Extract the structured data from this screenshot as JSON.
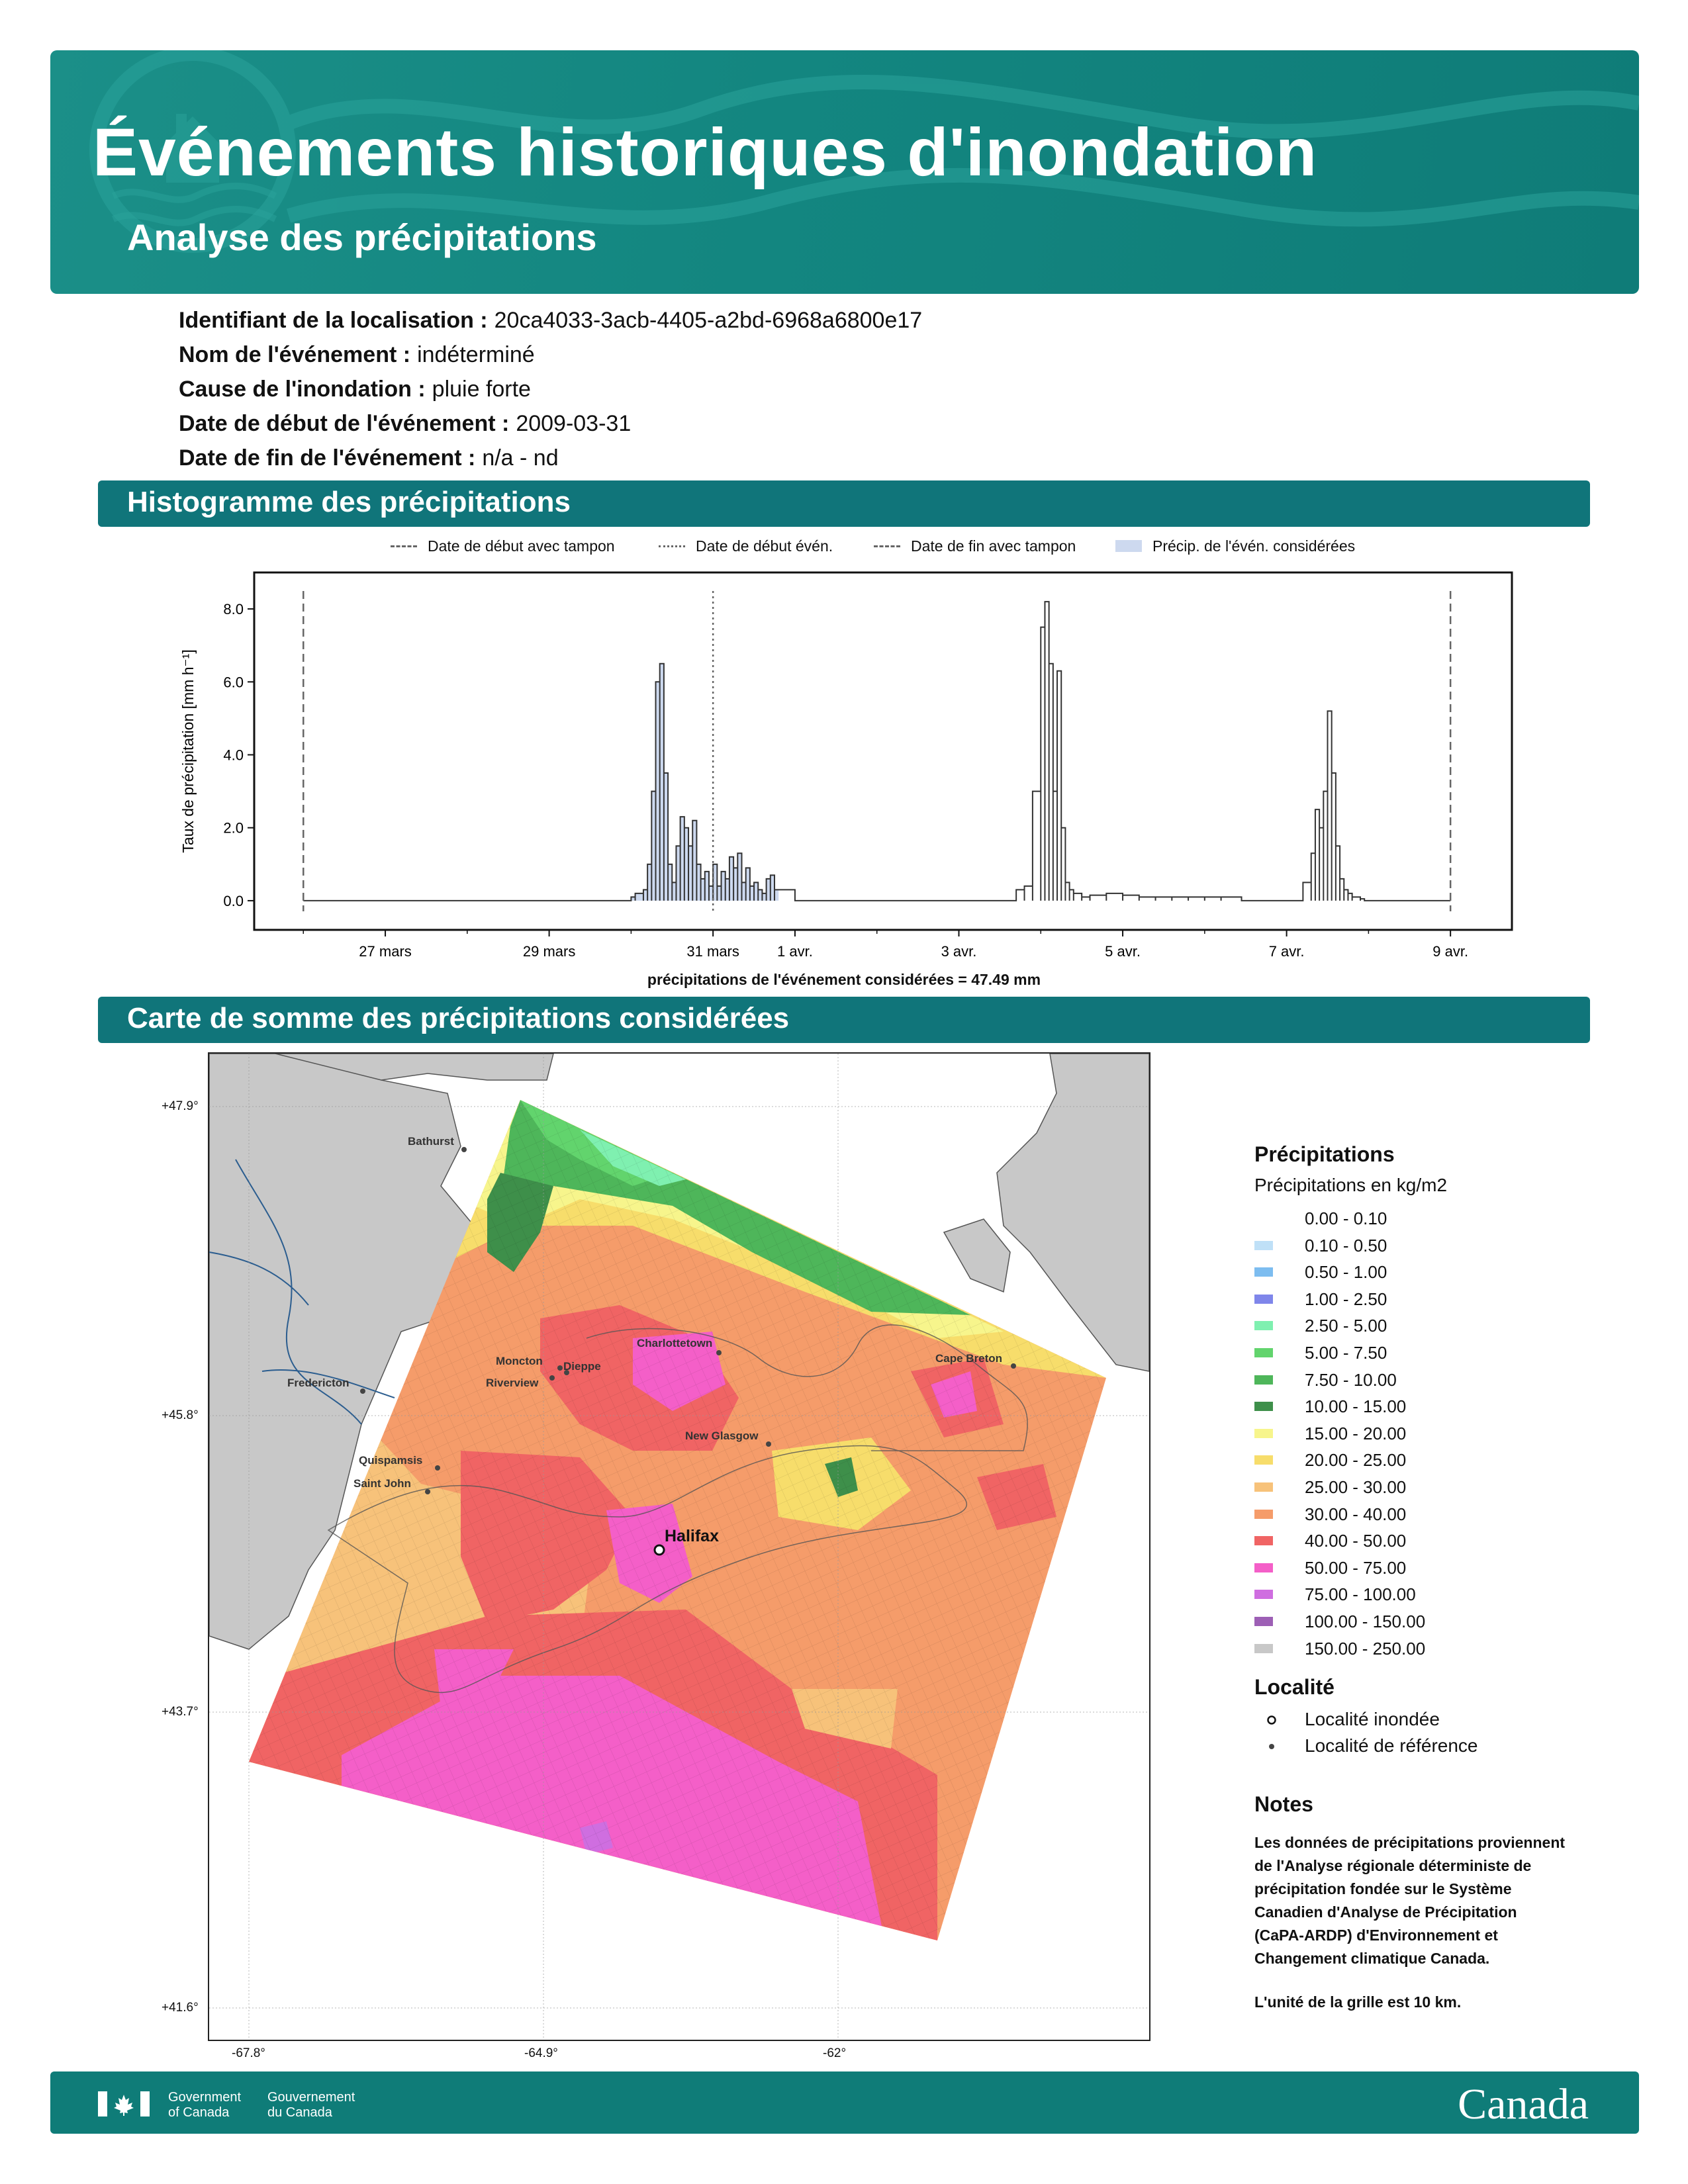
{
  "header": {
    "title": "Événements historiques d'inondation",
    "subtitle": "Analyse des précipitations"
  },
  "info": [
    {
      "label": "Identifiant de la localisation :",
      "value": "20ca4033-3acb-4405-a2bd-6968a6800e17"
    },
    {
      "label": "Nom de l'événement :",
      "value": "indéterminé"
    },
    {
      "label": "Cause de l'inondation :",
      "value": "pluie forte"
    },
    {
      "label": "Date de début de l'événement :",
      "value": "2009-03-31"
    },
    {
      "label": "Date de fin de l'événement :",
      "value": "n/a - nd"
    }
  ],
  "sections": {
    "histogram": "Histogramme des précipitations",
    "map": "Carte de somme des précipitations considérées"
  },
  "chart_legend": [
    {
      "label": "Date de début avec tampon",
      "style": "dashed"
    },
    {
      "label": "Date de début évén.",
      "style": "dotted"
    },
    {
      "label": "Date de fin avec tampon",
      "style": "dashed"
    },
    {
      "label": "Précip. de l'évén. considérées",
      "style": "fill",
      "color": "#cdd9ef"
    }
  ],
  "chart_data": {
    "type": "line",
    "ylabel": "Taux de précipitation [mm h⁻¹]",
    "yticks": [
      "0.0",
      "2.0",
      "4.0",
      "6.0",
      "8.0"
    ],
    "ylim": [
      -0.8,
      9.0
    ],
    "xlim_days": [
      -5.6,
      9.75
    ],
    "xticks": [
      {
        "label": "27 mars",
        "day": -4
      },
      {
        "label": "29 mars",
        "day": -2
      },
      {
        "label": "31 mars",
        "day": 0
      },
      {
        "label": "1 avr.",
        "day": 1
      },
      {
        "label": "3 avr.",
        "day": 3
      },
      {
        "label": "5 avr.",
        "day": 5
      },
      {
        "label": "7 avr.",
        "day": 7
      },
      {
        "label": "9 avr.",
        "day": 9
      }
    ],
    "buffer_start_day": -5,
    "event_start_day": 0,
    "buffer_end_day": 9,
    "considered_end_day": 0.75,
    "x_day": [
      -1.0,
      -0.95,
      -0.85,
      -0.8,
      -0.75,
      -0.7,
      -0.65,
      -0.6,
      -0.55,
      -0.5,
      -0.45,
      -0.4,
      -0.35,
      -0.3,
      -0.25,
      -0.2,
      -0.15,
      -0.1,
      -0.05,
      0.0,
      0.05,
      0.1,
      0.15,
      0.2,
      0.25,
      0.3,
      0.35,
      0.4,
      0.45,
      0.5,
      0.55,
      0.6,
      0.65,
      0.7,
      0.75,
      3.7,
      3.8,
      3.9,
      4.0,
      4.05,
      4.1,
      4.15,
      4.2,
      4.25,
      4.3,
      4.35,
      4.4,
      4.5,
      4.6,
      4.8,
      5.0,
      5.2,
      5.4,
      5.6,
      5.8,
      6.0,
      6.2,
      7.2,
      7.3,
      7.35,
      7.4,
      7.45,
      7.5,
      7.55,
      7.6,
      7.65,
      7.7,
      7.75,
      7.8,
      7.9
    ],
    "y": [
      0.1,
      0.2,
      0.3,
      1.0,
      3.0,
      6.0,
      6.5,
      3.5,
      1.0,
      0.5,
      1.5,
      2.3,
      2.0,
      1.5,
      2.2,
      1.0,
      0.6,
      0.8,
      0.4,
      1.0,
      0.4,
      0.8,
      0.6,
      1.2,
      0.9,
      1.3,
      0.5,
      0.9,
      0.4,
      0.5,
      0.3,
      0.2,
      0.6,
      0.7,
      0.3,
      0.3,
      0.4,
      3.0,
      7.5,
      8.2,
      6.5,
      3.0,
      6.3,
      2.0,
      0.5,
      0.3,
      0.2,
      0.1,
      0.15,
      0.2,
      0.15,
      0.1,
      0.1,
      0.1,
      0.1,
      0.1,
      0.1,
      0.5,
      1.3,
      2.5,
      2.0,
      3.0,
      5.2,
      3.5,
      1.5,
      0.6,
      0.3,
      0.2,
      0.1,
      0.05
    ],
    "caption": "précipitations de l'événement considérées = 47.49 mm"
  },
  "map": {
    "lat_labels": [
      "+47.9°",
      "+45.8°",
      "+43.7°",
      "+41.6°"
    ],
    "lon_labels": [
      "-67.8°",
      "-64.9°",
      "-62°"
    ],
    "cities": [
      {
        "name": "Bathurst"
      },
      {
        "name": "Fredericton"
      },
      {
        "name": "Moncton"
      },
      {
        "name": "Dieppe"
      },
      {
        "name": "Riverview"
      },
      {
        "name": "Charlottetown"
      },
      {
        "name": "Cape Breton"
      },
      {
        "name": "New Glasgow"
      },
      {
        "name": "Quispamsis"
      },
      {
        "name": "Saint John"
      },
      {
        "name": "Halifax"
      }
    ]
  },
  "legend": {
    "title": "Précipitations",
    "subtitle": "Précipitations en kg/m2",
    "items": [
      {
        "label": "0.00 - 0.10",
        "color": "#ffffff"
      },
      {
        "label": "0.10 - 0.50",
        "color": "#bfe0f7"
      },
      {
        "label": "0.50 - 1.00",
        "color": "#7dbdf0"
      },
      {
        "label": "1.00 - 2.50",
        "color": "#7f86ea"
      },
      {
        "label": "2.50 - 5.00",
        "color": "#7ff0b0"
      },
      {
        "label": "5.00 - 7.50",
        "color": "#62d46d"
      },
      {
        "label": "7.50 - 10.00",
        "color": "#4eb65a"
      },
      {
        "label": "10.00 - 15.00",
        "color": "#3e8f4a"
      },
      {
        "label": "15.00 - 20.00",
        "color": "#f7f58c"
      },
      {
        "label": "20.00 - 25.00",
        "color": "#f7dd6b"
      },
      {
        "label": "25.00 - 30.00",
        "color": "#f7c27a"
      },
      {
        "label": "30.00 - 40.00",
        "color": "#f59c6a"
      },
      {
        "label": "40.00 - 50.00",
        "color": "#f06464"
      },
      {
        "label": "50.00 - 75.00",
        "color": "#f45fc8"
      },
      {
        "label": "75.00 - 100.00",
        "color": "#cf6ee0"
      },
      {
        "label": "100.00 - 150.00",
        "color": "#9d5fb5"
      },
      {
        "label": "150.00 - 250.00",
        "color": "#c8c8c8"
      }
    ],
    "locality_title": "Localité",
    "locality_items": [
      {
        "label": "Localité inondée"
      },
      {
        "label": "Localité de référence"
      }
    ],
    "notes_title": "Notes",
    "notes_text": "Les données de précipitations proviennent\nde l'Analyse régionale déterministe de\nprécipitation fondée sur le Système\nCanadien d'Analyse de Précipitation\n(CaPA-ARDP) d'Environnement et\nChangement climatique Canada.",
    "notes_unit": "L'unité de la grille est 10 km."
  },
  "footer": {
    "gov_en": "Government\nof Canada",
    "gov_fr": "Gouvernement\ndu Canada",
    "wordmark": "Canada"
  }
}
